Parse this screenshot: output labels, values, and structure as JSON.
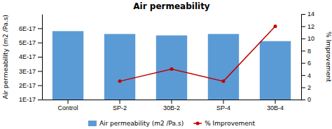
{
  "chart_data": {
    "type": "bar",
    "title": "Air permeability",
    "categories": [
      "Control",
      "SP-2",
      "30B-2",
      "SP-4",
      "30B-4"
    ],
    "series": [
      {
        "name": "Air permeability (m2 /Pa.s)",
        "type": "bar",
        "color": "#5B9BD5",
        "values": [
          5.8e-17,
          5.6e-17,
          5.5e-17,
          5.6e-17,
          5.1e-17
        ]
      },
      {
        "name": "% Improvement",
        "type": "line",
        "axis": "y2",
        "color": "#C00000",
        "marker": "circle",
        "values": [
          null,
          3.0,
          5.0,
          3.0,
          12.0
        ]
      }
    ],
    "ylabel": "Air permeability (m2 /Pa.s)",
    "y2label": "% Improvement",
    "ylim": [
      1e-17,
      7e-17
    ],
    "yticks": [
      {
        "value": 1e-17,
        "label": "1E-17"
      },
      {
        "value": 2e-17,
        "label": "2E-17"
      },
      {
        "value": 3e-17,
        "label": "3E-17"
      },
      {
        "value": 4e-17,
        "label": "4E-17"
      },
      {
        "value": 5e-17,
        "label": "5E-17"
      },
      {
        "value": 6e-17,
        "label": "6E-17"
      }
    ],
    "y2lim": [
      0,
      14
    ],
    "y2ticks": [
      0,
      2,
      4,
      6,
      8,
      10,
      12,
      14
    ],
    "grid": false,
    "legend": "bottom"
  }
}
